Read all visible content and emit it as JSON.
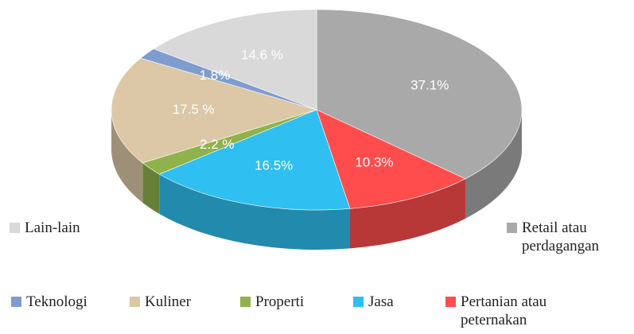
{
  "chart_data": {
    "type": "pie3d",
    "categories": [
      "Retail atau perdagangan",
      "Pertanian atau peternakan",
      "Jasa",
      "Properti",
      "Kuliner",
      "Teknologi",
      "Lain-lain"
    ],
    "values": [
      37.1,
      10.3,
      16.5,
      2.2,
      17.5,
      1.8,
      14.6
    ],
    "value_labels": [
      "37.1%",
      "10.3%",
      "16.5%",
      "2.2 %",
      "17.5 %",
      "1.8%",
      "14.6 %"
    ],
    "colors": [
      "#a9a9a9",
      "#ff4d4d",
      "#2fbff0",
      "#8fb24c",
      "#dcc8a6",
      "#7f9ccf",
      "#d9d9d9"
    ],
    "legend": "bottom"
  }
}
